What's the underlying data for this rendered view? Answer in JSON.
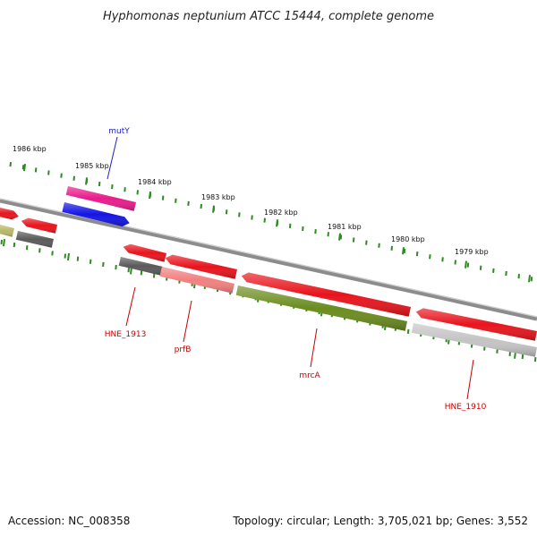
{
  "title": "Hyphomonas neptunium ATCC 15444, complete genome",
  "footer": {
    "accession": "Accession: NC_008358",
    "summary": "Topology: circular; Length: 3,705,021 bp; Genes: 3,552"
  },
  "scale": {
    "tick_color": "#2e8b22",
    "labels": [
      "1986 kbp",
      "1985 kbp",
      "1984 kbp",
      "1983 kbp",
      "1982 kbp",
      "1981 kbp",
      "1980 kbp",
      "1979 kbp"
    ]
  },
  "colors": {
    "backbone": "#8c8c8c",
    "red": "#e8141c",
    "magenta": "#e81b8c",
    "blue": "#1414e6",
    "olive": "#b8b86a",
    "dark_gray": "#5a5a5a",
    "pink": "#f28080",
    "green": "#6b8c1e",
    "light_gray": "#c4c4c4"
  },
  "gene_labels": [
    {
      "name": "mutY",
      "color": "#2020c0"
    },
    {
      "name": "HNE_1913",
      "color": "#c80000"
    },
    {
      "name": "prfB",
      "color": "#c80000"
    },
    {
      "name": "mrcA",
      "color": "#c80000"
    },
    {
      "name": "HNE_1910",
      "color": "#c80000"
    }
  ]
}
